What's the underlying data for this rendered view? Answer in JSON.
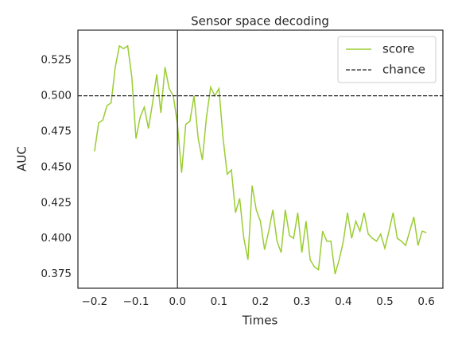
{
  "chart_data": {
    "type": "line",
    "title": "Sensor space decoding",
    "x_label": "Times",
    "y_label": "AUC",
    "x": [
      -0.2,
      -0.19,
      -0.18,
      -0.17,
      -0.16,
      -0.15,
      -0.14,
      -0.13,
      -0.12,
      -0.11,
      -0.1,
      -0.09,
      -0.08,
      -0.07,
      -0.06,
      -0.05,
      -0.04,
      -0.03,
      -0.02,
      -0.01,
      0,
      0.01,
      0.02,
      0.03,
      0.04,
      0.05,
      0.06,
      0.07,
      0.08,
      0.09,
      0.1,
      0.11,
      0.12,
      0.13,
      0.14,
      0.15,
      0.16,
      0.17,
      0.18,
      0.19,
      0.2,
      0.21,
      0.22,
      0.23,
      0.24,
      0.25,
      0.26,
      0.27,
      0.28,
      0.29,
      0.3,
      0.31,
      0.32,
      0.33,
      0.34,
      0.35,
      0.36,
      0.37,
      0.38,
      0.39,
      0.4,
      0.41,
      0.42,
      0.43,
      0.44,
      0.45,
      0.46,
      0.47,
      0.48,
      0.49,
      0.5,
      0.51,
      0.52,
      0.53,
      0.54,
      0.55,
      0.56,
      0.57,
      0.58,
      0.59,
      0.6
    ],
    "series": [
      {
        "name": "score",
        "color": "#9acd32",
        "values": [
          0.461,
          0.481,
          0.483,
          0.493,
          0.495,
          0.52,
          0.535,
          0.533,
          0.535,
          0.513,
          0.47,
          0.485,
          0.492,
          0.477,
          0.495,
          0.515,
          0.488,
          0.52,
          0.505,
          0.5,
          0.48,
          0.446,
          0.48,
          0.482,
          0.5,
          0.47,
          0.455,
          0.485,
          0.506,
          0.5,
          0.505,
          0.47,
          0.445,
          0.448,
          0.418,
          0.428,
          0.4,
          0.385,
          0.437,
          0.42,
          0.412,
          0.392,
          0.405,
          0.42,
          0.398,
          0.39,
          0.42,
          0.402,
          0.4,
          0.418,
          0.39,
          0.412,
          0.385,
          0.38,
          0.378,
          0.405,
          0.398,
          0.398,
          0.375,
          0.385,
          0.398,
          0.418,
          0.4,
          0.412,
          0.405,
          0.418,
          0.403,
          0.4,
          0.398,
          0.403,
          0.393,
          0.405,
          0.418,
          0.4,
          0.398,
          0.395,
          0.405,
          0.415,
          0.395,
          0.405,
          0.404
        ]
      }
    ],
    "hline": {
      "name": "chance",
      "value": 0.5,
      "color": "#262626"
    },
    "vline": {
      "value": 0,
      "color": "#262626"
    },
    "xlim": [
      -0.24,
      0.64
    ],
    "ylim": [
      0.365,
      0.546
    ],
    "xticks": [
      {
        "value": -0.2,
        "label": "−0.2"
      },
      {
        "value": -0.1,
        "label": "−0.1"
      },
      {
        "value": 0,
        "label": "0.0"
      },
      0.1,
      0.2,
      0.3,
      0.4,
      0.5,
      0.6
    ],
    "yticks": [
      0.375,
      {
        "value": 0.4,
        "label": "0.400"
      },
      0.425,
      {
        "value": 0.45,
        "label": "0.450"
      },
      0.475,
      {
        "value": 0.5,
        "label": "0.500"
      },
      0.525
    ],
    "legend": "upper right"
  }
}
